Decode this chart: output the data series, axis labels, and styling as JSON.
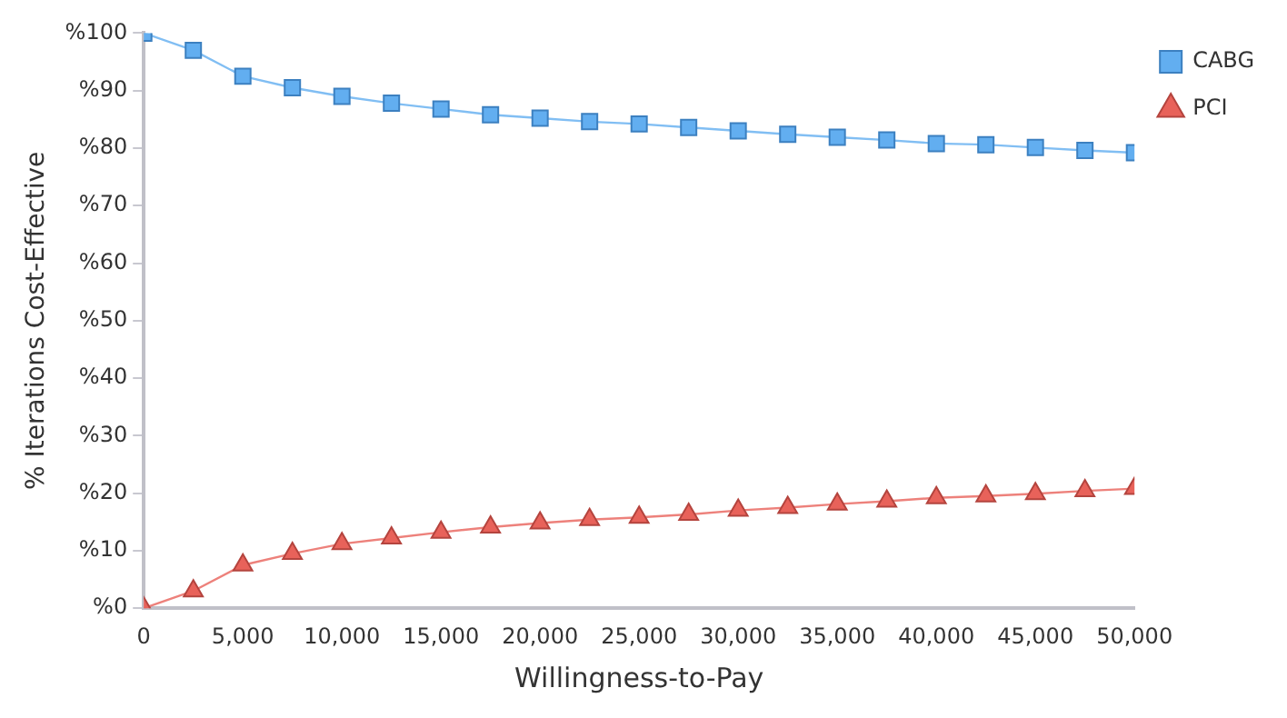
{
  "chart_data": {
    "type": "line",
    "xlabel": "Willingness-to-Pay",
    "ylabel": "% Iterations Cost-Effective",
    "x": [
      0,
      2500,
      5000,
      7500,
      10000,
      12500,
      15000,
      17500,
      20000,
      22500,
      25000,
      27500,
      30000,
      32500,
      35000,
      37500,
      40000,
      42500,
      45000,
      47500,
      50000
    ],
    "series": [
      {
        "name": "CABG",
        "color": "#62aef0",
        "marker": "square",
        "values": [
          100,
          97,
          92.5,
          90.5,
          89,
          87.8,
          86.8,
          85.8,
          85.2,
          84.6,
          84.2,
          83.6,
          83,
          82.4,
          81.9,
          81.4,
          80.8,
          80.6,
          80.1,
          79.6,
          79.2
        ]
      },
      {
        "name": "PCI",
        "color": "#e8625a",
        "marker": "triangle",
        "values": [
          0,
          3,
          7.5,
          9.5,
          11.2,
          12.2,
          13.2,
          14.1,
          14.8,
          15.4,
          15.8,
          16.3,
          17,
          17.5,
          18.1,
          18.6,
          19.2,
          19.5,
          19.9,
          20.4,
          20.8
        ]
      }
    ],
    "xlim": [
      0,
      50000
    ],
    "xticks": [
      {
        "value": 0,
        "label": "0"
      },
      {
        "value": 5000,
        "label": "5,000"
      },
      {
        "value": 10000,
        "label": "10,000"
      },
      {
        "value": 15000,
        "label": "15,000"
      },
      {
        "value": 20000,
        "label": "20,000"
      },
      {
        "value": 25000,
        "label": "25,000"
      },
      {
        "value": 30000,
        "label": "30,000"
      },
      {
        "value": 35000,
        "label": "35,000"
      },
      {
        "value": 40000,
        "label": "40,000"
      },
      {
        "value": 45000,
        "label": "45,000"
      },
      {
        "value": 50000,
        "label": "50,000"
      }
    ],
    "ylim": [
      0,
      100
    ],
    "yticks": [
      {
        "value": 0,
        "label": "%0"
      },
      {
        "value": 10,
        "label": "%10"
      },
      {
        "value": 20,
        "label": "%20"
      },
      {
        "value": 30,
        "label": "%30"
      },
      {
        "value": 40,
        "label": "%40"
      },
      {
        "value": 50,
        "label": "%50"
      },
      {
        "value": 60,
        "label": "%60"
      },
      {
        "value": 70,
        "label": "%70"
      },
      {
        "value": 80,
        "label": "%80"
      },
      {
        "value": 90,
        "label": "%90"
      },
      {
        "value": 100,
        "label": "%100"
      }
    ],
    "grid": false,
    "legend": "top right",
    "line_style": "solid"
  }
}
